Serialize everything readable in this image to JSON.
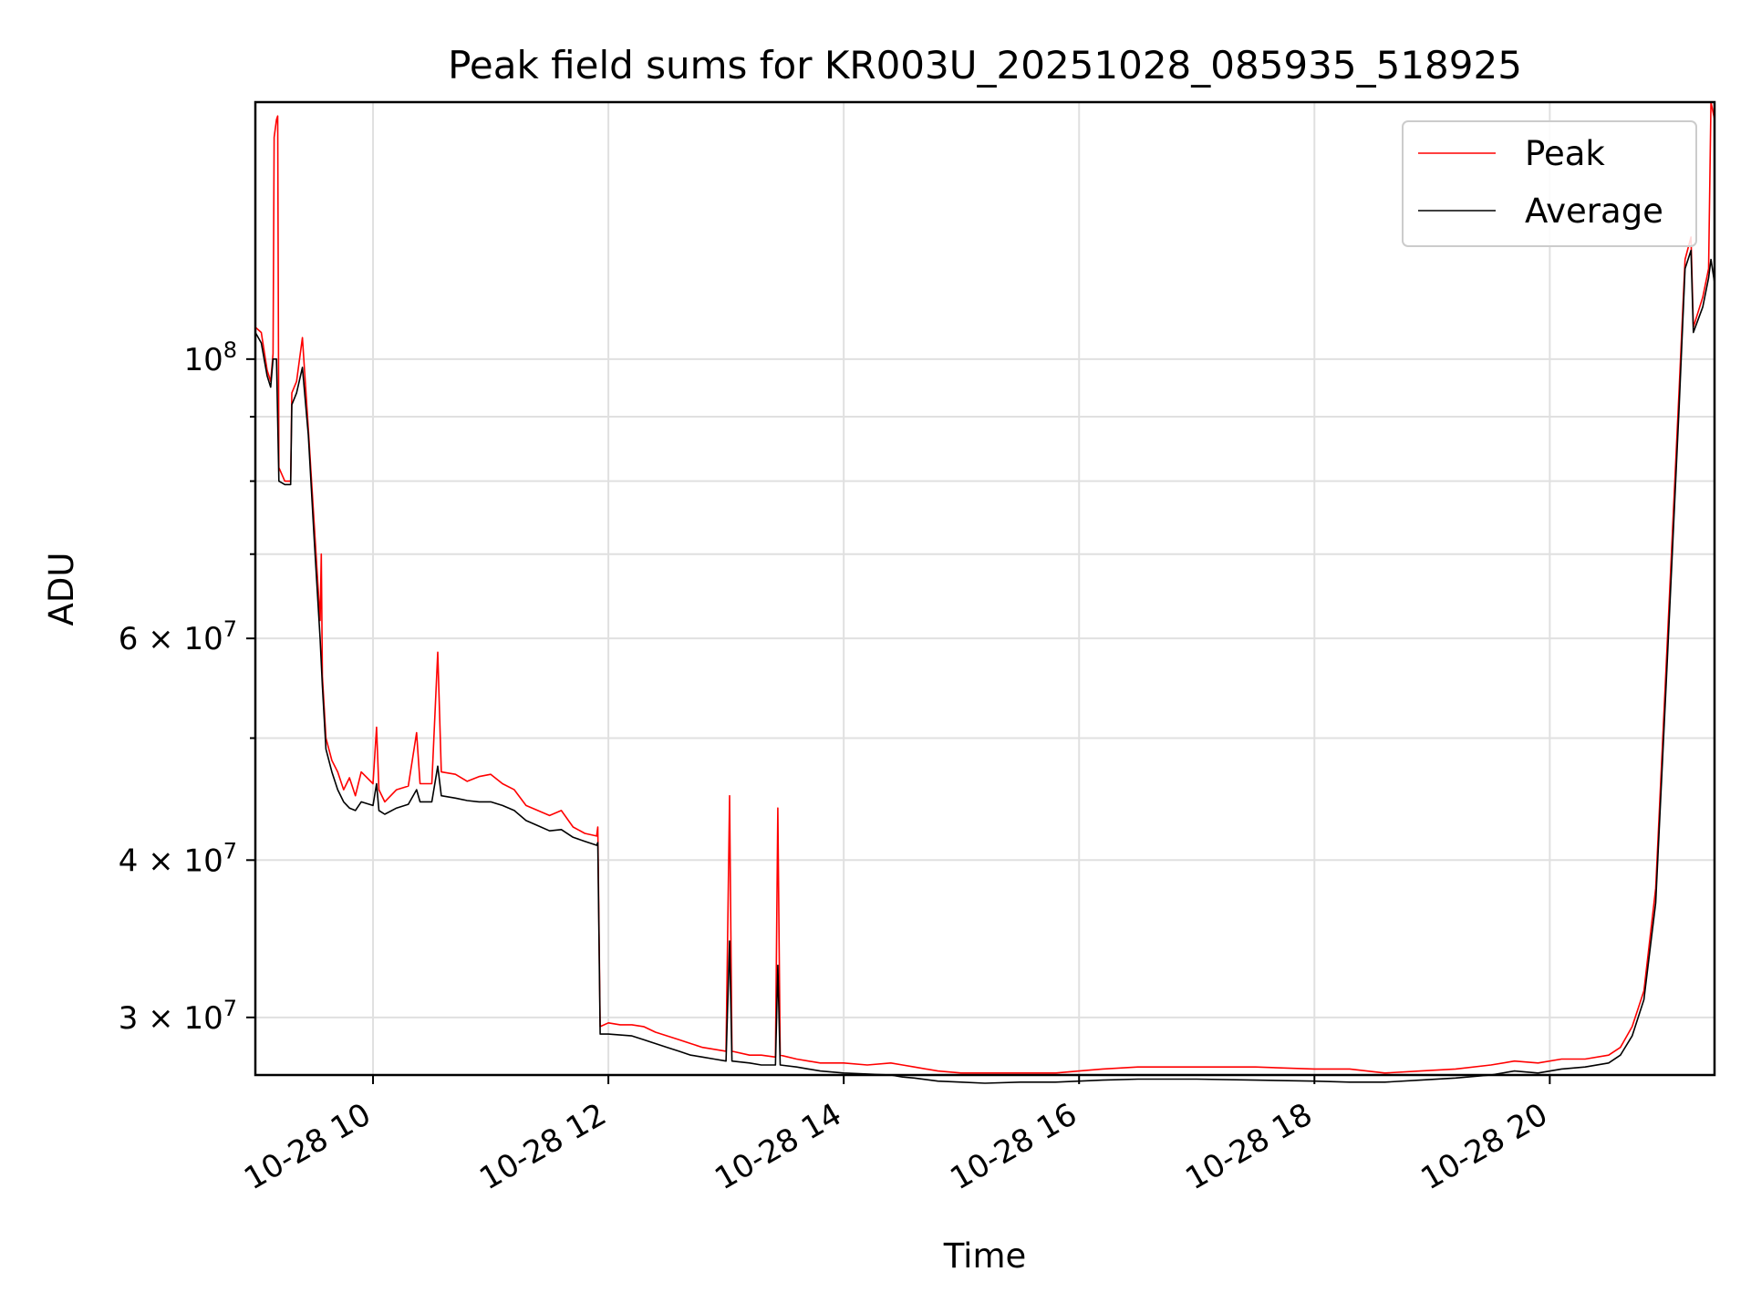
{
  "chart_data": {
    "type": "line",
    "title": "Peak field sums for KR003U_20251028_085935_518925",
    "xlabel": "Time",
    "ylabel": "ADU",
    "yscale": "log",
    "xlim": [
      9.0,
      21.4
    ],
    "ylim": [
      27000000,
      160000000
    ],
    "x_ticks": [
      {
        "value": 10,
        "label": "10-28 10"
      },
      {
        "value": 12,
        "label": "10-28 12"
      },
      {
        "value": 14,
        "label": "10-28 14"
      },
      {
        "value": 16,
        "label": "10-28 16"
      },
      {
        "value": 18,
        "label": "10-28 18"
      },
      {
        "value": 20,
        "label": "10-28 20"
      }
    ],
    "y_ticks_major": [
      {
        "value": 100000000,
        "base": "10",
        "exp": "8",
        "mant": ""
      },
      {
        "value": 60000000,
        "base": "10",
        "exp": "7",
        "mant": "6"
      },
      {
        "value": 40000000,
        "base": "10",
        "exp": "7",
        "mant": "4"
      },
      {
        "value": 30000000,
        "base": "10",
        "exp": "7",
        "mant": "3"
      }
    ],
    "y_ticks_minor": [
      90000000,
      80000000,
      70000000,
      50000000
    ],
    "grid": true,
    "legend_position": "upper right",
    "series": [
      {
        "name": "Peak",
        "color": "#ff0000",
        "points": [
          [
            9.0,
            106000000
          ],
          [
            9.05,
            105000000
          ],
          [
            9.1,
            98000000
          ],
          [
            9.13,
            96000000
          ],
          [
            9.15,
            101000000
          ],
          [
            9.16,
            150000000
          ],
          [
            9.18,
            155000000
          ],
          [
            9.19,
            156000000
          ],
          [
            9.2,
            82000000
          ],
          [
            9.25,
            80000000
          ],
          [
            9.3,
            80000000
          ],
          [
            9.31,
            94000000
          ],
          [
            9.35,
            96000000
          ],
          [
            9.4,
            104000000
          ],
          [
            9.45,
            88000000
          ],
          [
            9.5,
            74000000
          ],
          [
            9.55,
            62000000
          ],
          [
            9.56,
            70000000
          ],
          [
            9.57,
            56000000
          ],
          [
            9.6,
            50000000
          ],
          [
            9.65,
            48000000
          ],
          [
            9.7,
            47000000
          ],
          [
            9.75,
            45500000
          ],
          [
            9.8,
            46500000
          ],
          [
            9.85,
            45000000
          ],
          [
            9.9,
            47000000
          ],
          [
            10.0,
            46000000
          ],
          [
            10.03,
            51000000
          ],
          [
            10.05,
            45500000
          ],
          [
            10.1,
            44500000
          ],
          [
            10.2,
            45500000
          ],
          [
            10.3,
            45800000
          ],
          [
            10.37,
            50500000
          ],
          [
            10.4,
            46000000
          ],
          [
            10.5,
            46000000
          ],
          [
            10.55,
            58500000
          ],
          [
            10.58,
            47000000
          ],
          [
            10.7,
            46800000
          ],
          [
            10.8,
            46200000
          ],
          [
            10.9,
            46600000
          ],
          [
            11.0,
            46800000
          ],
          [
            11.1,
            46000000
          ],
          [
            11.2,
            45500000
          ],
          [
            11.3,
            44200000
          ],
          [
            11.4,
            43800000
          ],
          [
            11.5,
            43400000
          ],
          [
            11.6,
            43800000
          ],
          [
            11.7,
            42500000
          ],
          [
            11.8,
            42000000
          ],
          [
            11.9,
            41800000
          ],
          [
            11.91,
            42500000
          ],
          [
            11.93,
            29500000
          ],
          [
            12.0,
            29700000
          ],
          [
            12.1,
            29600000
          ],
          [
            12.2,
            29600000
          ],
          [
            12.3,
            29500000
          ],
          [
            12.4,
            29200000
          ],
          [
            12.5,
            29000000
          ],
          [
            12.6,
            28800000
          ],
          [
            12.7,
            28600000
          ],
          [
            12.8,
            28400000
          ],
          [
            12.9,
            28300000
          ],
          [
            13.0,
            28200000
          ],
          [
            13.03,
            45000000
          ],
          [
            13.05,
            28200000
          ],
          [
            13.2,
            28000000
          ],
          [
            13.3,
            28000000
          ],
          [
            13.42,
            27900000
          ],
          [
            13.44,
            44000000
          ],
          [
            13.46,
            28000000
          ],
          [
            13.6,
            27800000
          ],
          [
            13.7,
            27700000
          ],
          [
            13.8,
            27600000
          ],
          [
            14.0,
            27600000
          ],
          [
            14.2,
            27500000
          ],
          [
            14.4,
            27600000
          ],
          [
            14.5,
            27500000
          ],
          [
            14.6,
            27400000
          ],
          [
            14.8,
            27200000
          ],
          [
            15.0,
            27100000
          ],
          [
            15.2,
            27100000
          ],
          [
            15.5,
            27100000
          ],
          [
            15.8,
            27100000
          ],
          [
            16.0,
            27200000
          ],
          [
            16.2,
            27300000
          ],
          [
            16.5,
            27400000
          ],
          [
            17.0,
            27400000
          ],
          [
            17.5,
            27400000
          ],
          [
            18.0,
            27300000
          ],
          [
            18.3,
            27300000
          ],
          [
            18.6,
            27100000
          ],
          [
            18.9,
            27200000
          ],
          [
            19.2,
            27300000
          ],
          [
            19.5,
            27500000
          ],
          [
            19.7,
            27700000
          ],
          [
            19.9,
            27600000
          ],
          [
            20.1,
            27800000
          ],
          [
            20.3,
            27800000
          ],
          [
            20.5,
            28000000
          ],
          [
            20.6,
            28400000
          ],
          [
            20.7,
            29500000
          ],
          [
            20.8,
            31500000
          ],
          [
            20.9,
            38000000
          ],
          [
            21.0,
            60000000
          ],
          [
            21.1,
            95000000
          ],
          [
            21.15,
            120000000
          ],
          [
            21.2,
            125000000
          ],
          [
            21.22,
            106000000
          ],
          [
            21.3,
            112000000
          ],
          [
            21.35,
            118000000
          ],
          [
            21.37,
            160000000
          ],
          [
            21.4,
            155000000
          ]
        ]
      },
      {
        "name": "Average",
        "color": "#000000",
        "points": [
          [
            9.0,
            105000000
          ],
          [
            9.05,
            103000000
          ],
          [
            9.1,
            97000000
          ],
          [
            9.13,
            95000000
          ],
          [
            9.15,
            100000000
          ],
          [
            9.18,
            100000000
          ],
          [
            9.2,
            80000000
          ],
          [
            9.25,
            79500000
          ],
          [
            9.3,
            79500000
          ],
          [
            9.31,
            92000000
          ],
          [
            9.35,
            94000000
          ],
          [
            9.4,
            98500000
          ],
          [
            9.45,
            87000000
          ],
          [
            9.5,
            72000000
          ],
          [
            9.55,
            60000000
          ],
          [
            9.57,
            55000000
          ],
          [
            9.6,
            49000000
          ],
          [
            9.65,
            47000000
          ],
          [
            9.7,
            45500000
          ],
          [
            9.75,
            44500000
          ],
          [
            9.8,
            44000000
          ],
          [
            9.85,
            43800000
          ],
          [
            9.9,
            44500000
          ],
          [
            10.0,
            44200000
          ],
          [
            10.03,
            46000000
          ],
          [
            10.05,
            43800000
          ],
          [
            10.1,
            43500000
          ],
          [
            10.2,
            44000000
          ],
          [
            10.3,
            44300000
          ],
          [
            10.37,
            45500000
          ],
          [
            10.4,
            44500000
          ],
          [
            10.5,
            44500000
          ],
          [
            10.55,
            47500000
          ],
          [
            10.58,
            45000000
          ],
          [
            10.7,
            44800000
          ],
          [
            10.8,
            44600000
          ],
          [
            10.9,
            44500000
          ],
          [
            11.0,
            44500000
          ],
          [
            11.1,
            44200000
          ],
          [
            11.2,
            43800000
          ],
          [
            11.3,
            43000000
          ],
          [
            11.4,
            42600000
          ],
          [
            11.5,
            42200000
          ],
          [
            11.6,
            42300000
          ],
          [
            11.7,
            41700000
          ],
          [
            11.8,
            41400000
          ],
          [
            11.9,
            41100000
          ],
          [
            11.91,
            41300000
          ],
          [
            11.93,
            29100000
          ],
          [
            12.0,
            29100000
          ],
          [
            12.1,
            29050000
          ],
          [
            12.2,
            29000000
          ],
          [
            12.3,
            28800000
          ],
          [
            12.4,
            28600000
          ],
          [
            12.5,
            28400000
          ],
          [
            12.6,
            28200000
          ],
          [
            12.7,
            28000000
          ],
          [
            12.8,
            27900000
          ],
          [
            12.9,
            27800000
          ],
          [
            13.0,
            27700000
          ],
          [
            13.03,
            34500000
          ],
          [
            13.05,
            27700000
          ],
          [
            13.2,
            27600000
          ],
          [
            13.3,
            27500000
          ],
          [
            13.42,
            27500000
          ],
          [
            13.44,
            33000000
          ],
          [
            13.46,
            27500000
          ],
          [
            13.6,
            27400000
          ],
          [
            13.7,
            27300000
          ],
          [
            13.8,
            27200000
          ],
          [
            14.0,
            27100000
          ],
          [
            14.2,
            27050000
          ],
          [
            14.4,
            27000000
          ],
          [
            14.5,
            26900000
          ],
          [
            14.6,
            26850000
          ],
          [
            14.8,
            26700000
          ],
          [
            15.0,
            26650000
          ],
          [
            15.2,
            26600000
          ],
          [
            15.5,
            26650000
          ],
          [
            15.8,
            26650000
          ],
          [
            16.0,
            26700000
          ],
          [
            16.2,
            26750000
          ],
          [
            16.5,
            26800000
          ],
          [
            17.0,
            26800000
          ],
          [
            17.5,
            26750000
          ],
          [
            18.0,
            26700000
          ],
          [
            18.3,
            26650000
          ],
          [
            18.6,
            26650000
          ],
          [
            18.9,
            26750000
          ],
          [
            19.2,
            26850000
          ],
          [
            19.5,
            27000000
          ],
          [
            19.7,
            27200000
          ],
          [
            19.9,
            27100000
          ],
          [
            20.1,
            27300000
          ],
          [
            20.3,
            27400000
          ],
          [
            20.5,
            27600000
          ],
          [
            20.6,
            28000000
          ],
          [
            20.7,
            29000000
          ],
          [
            20.8,
            31000000
          ],
          [
            20.9,
            37000000
          ],
          [
            21.0,
            58000000
          ],
          [
            21.1,
            92000000
          ],
          [
            21.15,
            118000000
          ],
          [
            21.2,
            122000000
          ],
          [
            21.22,
            105000000
          ],
          [
            21.3,
            110000000
          ],
          [
            21.35,
            116000000
          ],
          [
            21.37,
            120000000
          ],
          [
            21.4,
            115000000
          ]
        ]
      }
    ]
  }
}
